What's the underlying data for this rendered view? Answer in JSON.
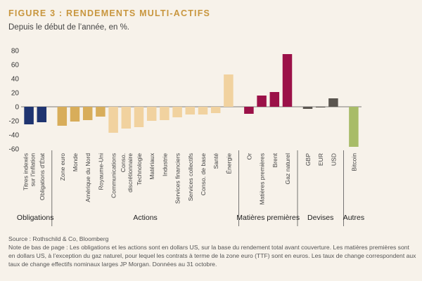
{
  "title": "FIGURE 3 : RENDEMENTS MULTI-ACTIFS",
  "subtitle": "Depuis le début de l’année, en %.",
  "footer": {
    "source": "Source : Rothschild & Co, Bloomberg",
    "note": "Note de bas de page : Les obligations et les actions sont en dollars US, sur la base du rendement total avant couverture. Les matières premières sont en dollars US, à l’exception du gaz naturel, pour lequel les contrats à terme de la zone euro (TTF) sont en euros. Les taux de change correspondent aux taux de change effectifs nominaux larges JP Morgan. Données au 31 octobre."
  },
  "colors": {
    "obligations": "#1f3470",
    "actions_dark": "#d8ad5a",
    "actions_light": "#f1d29f",
    "matieres": "#9b1148",
    "devises": "#5a554f",
    "autres": "#a8bc68",
    "title": "#c8963e"
  },
  "chart_data": {
    "type": "bar",
    "title": "FIGURE 3 : RENDEMENTS MULTI-ACTIFS",
    "subtitle": "Depuis le début de l’année, en %.",
    "ylim": [
      -60,
      80
    ],
    "yticks": [
      -60,
      -40,
      -20,
      0,
      20,
      40,
      60,
      80
    ],
    "grid": false,
    "groups": [
      {
        "name": "Obligations",
        "colorKey": "obligations",
        "items": [
          {
            "label": "Titres indexés sur l'inflation",
            "value": -25
          },
          {
            "label": "Obligations d'État",
            "value": -22
          }
        ]
      },
      {
        "name": "Actions",
        "colorKey": "actions",
        "items": [
          {
            "label": "Zone euro",
            "value": -27,
            "shade": "dark"
          },
          {
            "label": "Monde",
            "value": -21,
            "shade": "dark"
          },
          {
            "label": "Amérique du Nord",
            "value": -19,
            "shade": "dark"
          },
          {
            "label": "Royaume-Uni",
            "value": -14,
            "shade": "dark"
          },
          {
            "label": "Communications",
            "value": -37,
            "shade": "light"
          },
          {
            "label": "Conso. discrétionnaire",
            "value": -31,
            "shade": "light"
          },
          {
            "label": "Technologie",
            "value": -29,
            "shade": "light"
          },
          {
            "label": "Matériaux",
            "value": -20,
            "shade": "light"
          },
          {
            "label": "Industrie",
            "value": -19,
            "shade": "light"
          },
          {
            "label": "Services financiers",
            "value": -15,
            "shade": "light"
          },
          {
            "label": "Services collectifs",
            "value": -11,
            "shade": "light"
          },
          {
            "label": "Conso. de base",
            "value": -11,
            "shade": "light"
          },
          {
            "label": "Santé",
            "value": -9,
            "shade": "light"
          },
          {
            "label": "Énergie",
            "value": 46,
            "shade": "light"
          }
        ]
      },
      {
        "name": "Matières premières",
        "colorKey": "matieres",
        "items": [
          {
            "label": "Or",
            "value": -10
          },
          {
            "label": "Matières premières",
            "value": 16
          },
          {
            "label": "Brent",
            "value": 21
          },
          {
            "label": "Gaz naturel",
            "value": 75
          }
        ]
      },
      {
        "name": "Devises",
        "colorKey": "devises",
        "items": [
          {
            "label": "GBP",
            "value": -3
          },
          {
            "label": "EUR",
            "value": -1
          },
          {
            "label": "USD",
            "value": 12
          }
        ]
      },
      {
        "name": "Autres",
        "colorKey": "autres",
        "items": [
          {
            "label": "Bitcoin",
            "value": -57
          }
        ]
      }
    ]
  }
}
